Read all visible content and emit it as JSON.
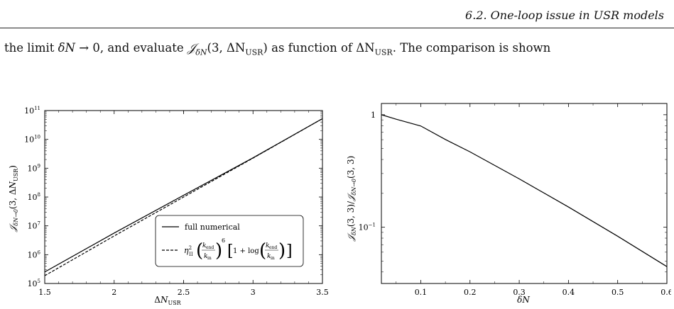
{
  "header": {
    "running_title": "6.2. One-loop issue in USR models"
  },
  "body": {
    "text_prefix": "the limit ",
    "delta_n": "δN",
    "arrow": "→",
    "zero_and": "0, and evaluate ",
    "J": "𝒥",
    "eval_args": "(3, ΔN",
    "usr_sub": "USR",
    "close_as": ") as function of ΔN",
    "usr_sub2": "USR",
    "text_suffix": ". The comparison is shown"
  },
  "chart_data": [
    {
      "type": "line",
      "yscale": "log",
      "xlabel": "ΔN_USR",
      "ylabel": "𝒥_{δN→0}(3, ΔN_USR)",
      "xlim": [
        1.5,
        3.5
      ],
      "ylim_exp": [
        5,
        11
      ],
      "xticks": [
        "1.5",
        "2",
        "2.5",
        "3",
        "3.5"
      ],
      "ytick_exponents": [
        5,
        6,
        7,
        8,
        9,
        10,
        11
      ],
      "ytick_base": "10",
      "legend": {
        "placement": "bottom-right",
        "entries": [
          {
            "label": "full numerical",
            "style": "solid"
          },
          {
            "label": "η_II² (k_end/k_in)⁶ [1 + log(k_end/k_in)]",
            "style": "dashed"
          }
        ]
      },
      "series": [
        {
          "name": "full numerical",
          "style": "solid",
          "x": [
            1.5,
            2.0,
            2.5,
            3.0,
            3.5
          ],
          "log10_y": [
            5.4,
            6.75,
            8.06,
            9.36,
            10.72
          ]
        },
        {
          "name": "analytic",
          "style": "dashed",
          "x": [
            1.5,
            2.0,
            2.5,
            3.0,
            3.5
          ],
          "log10_y": [
            5.27,
            6.65,
            8.0,
            9.35,
            10.72
          ]
        }
      ]
    },
    {
      "type": "line",
      "yscale": "log",
      "xlabel": "δN",
      "ylabel": "𝒥_{δN}(3,3)/𝒥_{δN→0}(3,3)",
      "xlim": [
        0.02,
        0.6
      ],
      "ylim_log10": [
        -1.5,
        0.1
      ],
      "xticks": [
        "0.1",
        "0.2",
        "0.3",
        "0.4",
        "0.5",
        "0.6"
      ],
      "xtick_values": [
        0.1,
        0.2,
        0.3,
        0.4,
        0.5,
        0.6
      ],
      "yticks": [
        {
          "label": "1",
          "log10": 0
        },
        {
          "label": "10",
          "sup": "−1",
          "log10": -1
        }
      ],
      "series": [
        {
          "name": "",
          "style": "solid",
          "x": [
            0.02,
            0.05,
            0.1,
            0.15,
            0.2,
            0.3,
            0.4,
            0.5,
            0.6
          ],
          "log10_y": [
            0.0,
            -0.04,
            -0.1,
            -0.22,
            -0.33,
            -0.57,
            -0.82,
            -1.08,
            -1.35
          ]
        }
      ]
    }
  ]
}
